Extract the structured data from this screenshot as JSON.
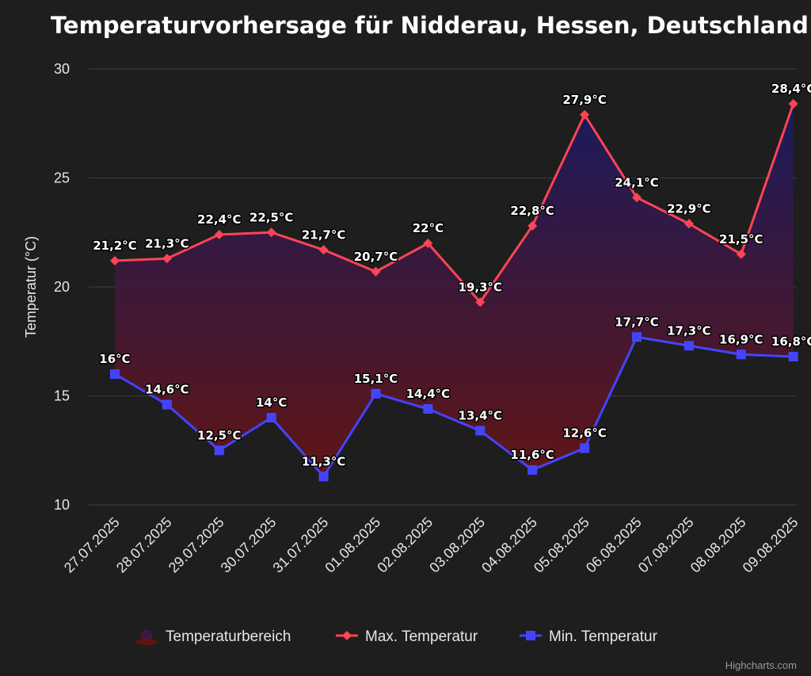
{
  "chart_data": {
    "type": "line",
    "title": "Temperaturvorhersage für Nidderau, Hessen, Deutschland",
    "ylabel": "Temperatur (°C)",
    "xlabel": "",
    "ylim": [
      10,
      30
    ],
    "yticks": [
      10,
      15,
      20,
      25,
      30
    ],
    "grid": true,
    "legend_position": "bottom-center",
    "categories": [
      "27.07.2025",
      "28.07.2025",
      "29.07.2025",
      "30.07.2025",
      "31.07.2025",
      "01.08.2025",
      "02.08.2025",
      "03.08.2025",
      "04.08.2025",
      "05.08.2025",
      "06.08.2025",
      "07.08.2025",
      "08.08.2025",
      "09.08.2025"
    ],
    "series": [
      {
        "name": "Max. Temperatur",
        "color": "#ff4455",
        "marker": "diamond",
        "values": [
          21.2,
          21.3,
          22.4,
          22.5,
          21.7,
          20.7,
          22,
          19.3,
          22.8,
          27.9,
          24.1,
          22.9,
          21.5,
          28.4
        ],
        "labels": [
          "21,2°C",
          "21,3°C",
          "22,4°C",
          "22,5°C",
          "21,7°C",
          "20,7°C",
          "22°C",
          "19,3°C",
          "22,8°C",
          "27,9°C",
          "24,1°C",
          "22,9°C",
          "21,5°C",
          "28,4°C"
        ]
      },
      {
        "name": "Min. Temperatur",
        "color": "#4444ff",
        "marker": "square",
        "values": [
          16,
          14.6,
          12.5,
          14,
          11.3,
          15.1,
          14.4,
          13.4,
          11.6,
          12.6,
          17.7,
          17.3,
          16.9,
          16.8
        ],
        "labels": [
          "16°C",
          "14,6°C",
          "12,5°C",
          "14°C",
          "11,3°C",
          "15,1°C",
          "14,4°C",
          "13,4°C",
          "11,6°C",
          "12,6°C",
          "17,7°C",
          "17,3°C",
          "16,9°C",
          "16,8°C"
        ]
      }
    ],
    "range_series": {
      "name": "Temperaturbereich",
      "gradient_top": "#1a1a66",
      "gradient_bottom": "#6b1414"
    },
    "credits": "Highcharts.com"
  }
}
